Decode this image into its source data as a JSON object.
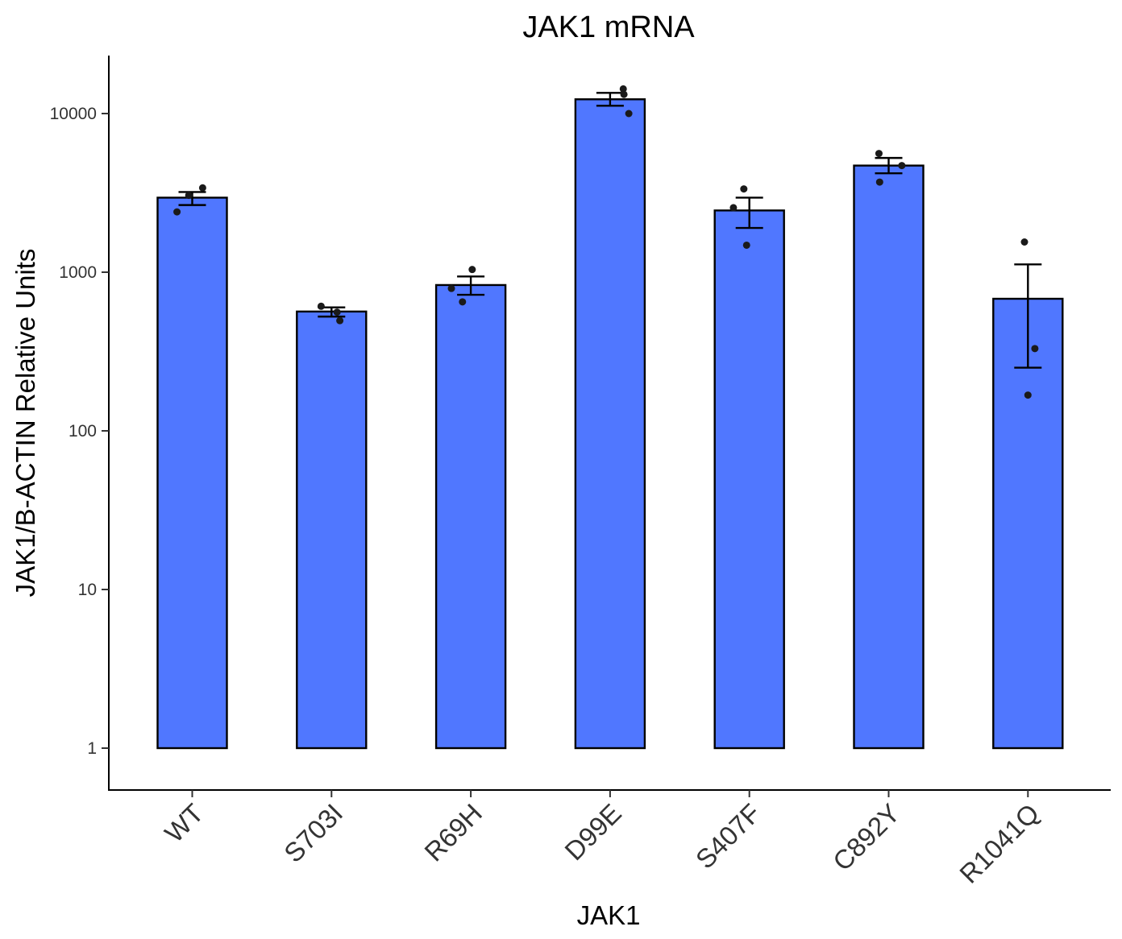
{
  "chart_data": {
    "type": "bar",
    "title": "JAK1 mRNA",
    "xlabel": "JAK1",
    "ylabel": "JAK1/B-ACTIN Relative Units",
    "y_scale": "log10",
    "ylim": [
      0.55,
      22000
    ],
    "bar_baseline": 1,
    "yticks": [
      1,
      10,
      100,
      1000,
      10000
    ],
    "ytick_labels": [
      "1",
      "10",
      "100",
      "1000",
      "10000"
    ],
    "categories": [
      "WT",
      "S703I",
      "R69H",
      "D99E",
      "S407F",
      "C892Y",
      "R1041Q"
    ],
    "values": [
      2950,
      565,
      830,
      12300,
      2450,
      4700,
      680
    ],
    "error_low": [
      2650,
      525,
      720,
      11200,
      1900,
      4200,
      250
    ],
    "error_high": [
      3200,
      600,
      940,
      13500,
      2950,
      5250,
      1120
    ],
    "points": [
      [
        {
          "dx": -0.22,
          "y": 2400
        },
        {
          "dx": -0.05,
          "y": 3050
        },
        {
          "dx": 0.15,
          "y": 3400
        }
      ],
      [
        {
          "dx": -0.15,
          "y": 610
        },
        {
          "dx": 0.08,
          "y": 560
        },
        {
          "dx": 0.12,
          "y": 495
        }
      ],
      [
        {
          "dx": -0.28,
          "y": 790
        },
        {
          "dx": -0.12,
          "y": 650
        },
        {
          "dx": 0.02,
          "y": 1040
        }
      ],
      [
        {
          "dx": 0.19,
          "y": 14300
        },
        {
          "dx": 0.2,
          "y": 13200
        },
        {
          "dx": 0.27,
          "y": 10000
        }
      ],
      [
        {
          "dx": -0.23,
          "y": 2550
        },
        {
          "dx": -0.08,
          "y": 3350
        },
        {
          "dx": -0.04,
          "y": 1480
        }
      ],
      [
        {
          "dx": -0.14,
          "y": 5600
        },
        {
          "dx": -0.13,
          "y": 3700
        },
        {
          "dx": 0.19,
          "y": 4700
        }
      ],
      [
        {
          "dx": -0.05,
          "y": 1550
        },
        {
          "dx": 0.0,
          "y": 168
        },
        {
          "dx": 0.1,
          "y": 330
        }
      ]
    ],
    "bar_color": "#5077FF",
    "point_color": "#1a1a1a",
    "grid": false,
    "legend": "none"
  }
}
